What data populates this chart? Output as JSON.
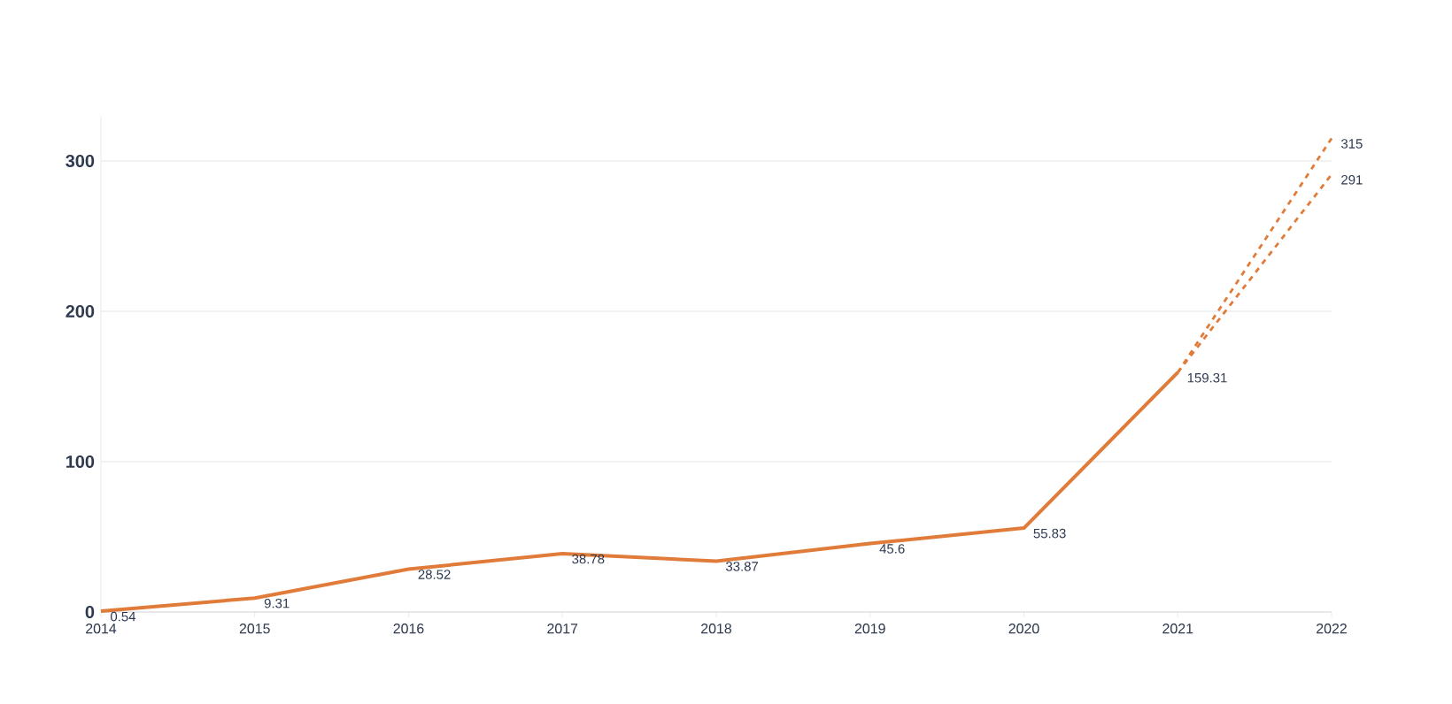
{
  "chart_data": {
    "type": "line",
    "categories": [
      "2014",
      "2015",
      "2016",
      "2017",
      "2018",
      "2019",
      "2020",
      "2021",
      "2022"
    ],
    "series": [
      {
        "color": "#e07b39",
        "line_style": "solid",
        "values": [
          0.54,
          9.31,
          28.52,
          38.78,
          33.87,
          45.6,
          55.83,
          159.31,
          null
        ],
        "value_labels": [
          "0.54",
          "9.31",
          "28.52",
          "38.78",
          "33.87",
          "45.6",
          "55.83",
          "159.31",
          null
        ]
      },
      {
        "color": "#e07b39",
        "line_style": "dashed",
        "values": [
          null,
          null,
          null,
          null,
          null,
          null,
          null,
          159.31,
          315
        ],
        "value_labels": [
          null,
          null,
          null,
          null,
          null,
          null,
          null,
          null,
          "315"
        ]
      },
      {
        "color": "#e07b39",
        "line_style": "dashed",
        "values": [
          null,
          null,
          null,
          null,
          null,
          null,
          null,
          159.31,
          291
        ],
        "value_labels": [
          null,
          null,
          null,
          null,
          null,
          null,
          null,
          null,
          "291"
        ]
      }
    ],
    "yticks": [
      0,
      100,
      200,
      300
    ],
    "ylim": [
      0,
      330
    ],
    "grid": "y"
  }
}
